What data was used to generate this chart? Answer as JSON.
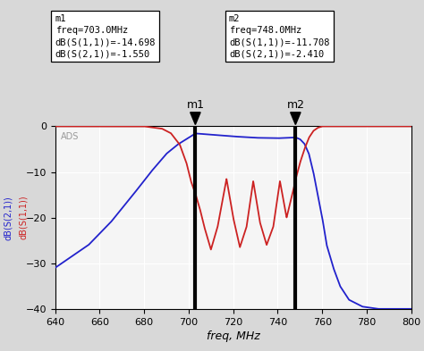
{
  "freq_min": 640,
  "freq_max": 800,
  "ymin": -40,
  "ymax": 0,
  "xlabel": "freq, MHz",
  "ylabel_blue": "dB(S(2,1))",
  "ylabel_red": "dB(S(1,1))",
  "marker1_freq": 703.0,
  "marker2_freq": 748.0,
  "m1_box": "m1\nfreq=703.0MHz\ndB(S(1,1))=-14.698\ndB(S(2,1))=-1.550",
  "m2_box": "m2\nfreq=748.0MHz\ndB(S(1,1))=-11.708\ndB(S(2,1))=-2.410",
  "ads_label": "ADS",
  "color_blue": "#2222cc",
  "color_red": "#cc2222",
  "bg_color": "#f5f5f5",
  "fig_bg": "#d8d8d8",
  "grid_color": "#ffffff",
  "yticks": [
    0,
    -10,
    -20,
    -30,
    -40
  ],
  "xticks": [
    640,
    660,
    680,
    700,
    720,
    740,
    760,
    780,
    800
  ],
  "s21_xp": [
    640,
    655,
    665,
    675,
    683,
    690,
    695,
    700,
    703,
    710,
    720,
    730,
    740,
    748,
    750,
    752,
    754,
    756,
    758,
    760,
    762,
    765,
    768,
    772,
    778,
    785,
    792,
    800
  ],
  "s21_yp": [
    -31,
    -26,
    -21,
    -15,
    -10,
    -6,
    -4,
    -2.5,
    -1.55,
    -1.8,
    -2.2,
    -2.5,
    -2.6,
    -2.41,
    -2.8,
    -3.8,
    -6,
    -10,
    -15,
    -20,
    -26,
    -31,
    -35,
    -38,
    -39.5,
    -40,
    -40,
    -40
  ],
  "s11_xp": [
    640,
    680,
    688,
    692,
    696,
    699,
    701,
    703,
    705,
    707,
    710,
    713,
    717,
    720,
    723,
    726,
    729,
    732,
    735,
    738,
    741,
    744,
    747,
    748,
    750,
    752,
    754,
    756,
    758,
    760,
    770,
    800
  ],
  "s11_yp": [
    0,
    0,
    -0.5,
    -1.5,
    -4,
    -8,
    -12,
    -14.7,
    -18,
    -22,
    -27,
    -22,
    -11.5,
    -20,
    -26.5,
    -22,
    -12,
    -21,
    -26,
    -22,
    -12,
    -20,
    -14,
    -11.7,
    -8,
    -5,
    -2.5,
    -1,
    -0.3,
    0,
    0,
    0
  ]
}
